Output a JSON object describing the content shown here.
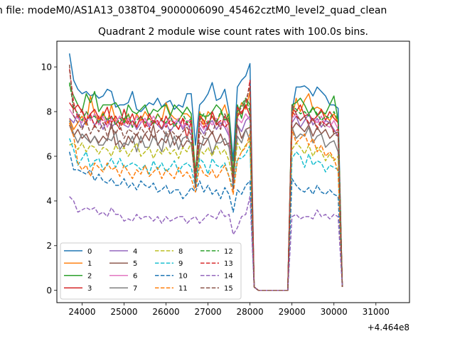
{
  "suptitle": "n file: modeM0/AS1A13_038T04_9000006090_45462cztM0_level2_quad_clean",
  "chart_data": {
    "type": "line",
    "title": "Quadrant 2 module wise count rates with 100.0s bins.",
    "xlabel": "",
    "ylabel": "",
    "x_offset_label": "+4.464e8",
    "xlim": [
      23400,
      31800
    ],
    "ylim": [
      -0.55,
      11.15
    ],
    "xticks": [
      24000,
      25000,
      26000,
      27000,
      28000,
      29000,
      30000,
      31000
    ],
    "yticks": [
      0,
      2,
      4,
      6,
      8,
      10
    ],
    "legend_position": "lower-left",
    "legend_columns": 4,
    "grid": false,
    "x_start": 23700,
    "x_step": 100,
    "gap_start_index": 13,
    "gap_end_index": 20,
    "series": [
      {
        "name": "0",
        "color": "#1f77b4",
        "dash": "solid",
        "seg1": [
          10.6,
          9.4,
          9.0,
          8.8,
          8.9,
          8.7,
          8.8,
          8.6,
          8.7,
          9.0,
          8.9,
          8.2,
          8.3,
          8.3,
          8.4,
          8.9,
          8.1,
          8.0,
          8.2,
          8.4,
          8.3,
          8.6,
          8.2,
          8.4,
          8.5,
          8.1,
          8.3,
          8.2,
          8.8,
          8.8,
          6.5,
          8.3,
          8.5,
          8.8,
          9.3,
          8.5,
          8.6,
          9.0,
          8.0,
          5.8,
          9.1,
          9.4,
          9.6,
          10.15
        ],
        "seg2": [
          8.0,
          9.1,
          9.1,
          9.15,
          9.0,
          8.7,
          9.1,
          8.9,
          8.7,
          8.3,
          8.3,
          8.15
        ]
      },
      {
        "name": "1",
        "color": "#ff7f0e",
        "dash": "solid",
        "seg1": [
          7.7,
          7.2,
          7.5,
          7.8,
          7.4,
          8.7,
          7.9,
          7.6,
          8.0,
          7.5,
          8.3,
          7.6,
          7.5,
          7.4,
          7.9,
          7.3,
          7.9,
          7.6,
          8.0,
          7.7,
          7.5,
          7.9,
          7.6,
          8.4,
          7.9,
          7.7,
          7.6,
          7.9,
          7.9,
          7.7,
          4.6,
          8.0,
          7.4,
          8.0,
          7.8,
          7.5,
          7.9,
          8.3,
          7.6,
          4.5,
          7.7,
          8.4,
          8.1,
          8.9
        ],
        "seg2": [
          7.7,
          8.6,
          8.0,
          8.5,
          8.8,
          8.1,
          8.2,
          8.1,
          7.8,
          7.6,
          7.9,
          7.5
        ]
      },
      {
        "name": "2",
        "color": "#2ca02c",
        "dash": "solid",
        "seg1": [
          9.2,
          8.7,
          8.3,
          8.0,
          8.8,
          8.4,
          8.9,
          8.0,
          8.3,
          8.3,
          8.3,
          8.4,
          8.1,
          7.5,
          8.3,
          8.0,
          7.9,
          8.1,
          8.3,
          7.8,
          8.1,
          8.0,
          8.2,
          8.3,
          7.8,
          8.3,
          8.1,
          7.9,
          8.2,
          7.9,
          5.2,
          7.9,
          7.8,
          7.8,
          8.0,
          8.3,
          8.1,
          7.6,
          7.9,
          5.2,
          8.3,
          7.7,
          8.6,
          8.3
        ],
        "seg2": [
          8.3,
          8.4,
          8.6,
          8.3,
          7.9,
          8.2,
          7.8,
          8.0,
          7.9,
          8.3,
          8.7,
          7.6
        ]
      },
      {
        "name": "3",
        "color": "#d62728",
        "dash": "solid",
        "seg1": [
          8.4,
          8.1,
          8.3,
          8.0,
          7.6,
          7.9,
          8.1,
          7.7,
          7.8,
          8.2,
          7.5,
          7.8,
          7.4,
          8.1,
          7.5,
          7.9,
          7.3,
          7.8,
          7.3,
          7.9,
          7.5,
          7.6,
          7.2,
          7.8,
          7.4,
          7.5,
          7.2,
          7.7,
          6.8,
          7.6,
          4.7,
          7.8,
          7.6,
          7.2,
          8.0,
          7.5,
          7.3,
          7.8,
          7.4,
          4.7,
          8.2,
          7.9,
          8.3,
          7.8
        ],
        "seg2": [
          8.1,
          8.0,
          8.3,
          7.8,
          7.9,
          7.6,
          7.8,
          8.1,
          7.6,
          8.0,
          7.7,
          7.5
        ]
      },
      {
        "name": "4",
        "color": "#9467bd",
        "dash": "solid",
        "seg1": [
          7.7,
          7.5,
          7.9,
          7.3,
          7.6,
          7.8,
          7.4,
          7.6,
          7.2,
          7.7,
          7.3,
          7.5,
          7.8,
          7.4,
          7.3,
          7.6,
          7.2,
          7.5,
          7.7,
          7.3,
          7.6,
          7.4,
          7.2,
          7.5,
          7.1,
          7.4,
          7.6,
          7.2,
          7.5,
          7.1,
          4.9,
          7.3,
          7.0,
          7.4,
          7.6,
          7.2,
          7.5,
          7.3,
          6.9,
          4.9,
          7.4,
          7.1,
          7.6,
          7.8
        ],
        "seg2": [
          7.5,
          7.8,
          7.3,
          7.6,
          7.9,
          7.4,
          7.7,
          7.3,
          7.6,
          7.5,
          7.2,
          6.9
        ]
      },
      {
        "name": "5",
        "color": "#8c564b",
        "dash": "solid",
        "seg1": [
          7.4,
          6.9,
          7.2,
          6.8,
          7.0,
          6.6,
          6.9,
          6.6,
          6.9,
          6.7,
          7.5,
          6.5,
          6.7,
          6.4,
          6.9,
          6.6,
          7.0,
          6.6,
          7.0,
          6.7,
          7.4,
          6.5,
          6.8,
          6.6,
          7.1,
          6.5,
          6.9,
          6.4,
          6.7,
          6.6,
          5.0,
          6.6,
          6.5,
          6.8,
          7.1,
          6.6,
          7.0,
          6.5,
          6.6,
          5.0,
          7.4,
          6.8,
          7.2,
          7.3
        ],
        "seg2": [
          7.2,
          7.5,
          7.3,
          7.1,
          7.4,
          6.9,
          7.3,
          7.0,
          7.2,
          6.8,
          7.0,
          7.1
        ]
      },
      {
        "name": "6",
        "color": "#e377c2",
        "dash": "solid",
        "seg1": [
          8.1,
          7.8,
          7.7,
          7.5,
          8.0,
          7.6,
          7.9,
          7.4,
          7.8,
          7.3,
          7.7,
          7.5,
          7.8,
          7.4,
          7.7,
          7.3,
          7.8,
          7.5,
          7.7,
          7.4,
          7.8,
          7.5,
          7.6,
          7.3,
          7.8,
          7.5,
          7.7,
          7.3,
          7.6,
          7.6,
          4.7,
          7.5,
          7.2,
          7.6,
          7.4,
          7.7,
          7.3,
          7.6,
          7.0,
          4.7,
          7.7,
          7.5,
          7.9,
          7.6
        ],
        "seg2": [
          7.7,
          7.9,
          7.6,
          7.8,
          7.4,
          7.7,
          7.5,
          7.8,
          7.4,
          7.3,
          7.6,
          7.2
        ]
      },
      {
        "name": "7",
        "color": "#7f7f7f",
        "dash": "solid",
        "seg1": [
          7.6,
          7.0,
          6.6,
          7.0,
          6.8,
          6.6,
          6.9,
          6.5,
          6.5,
          6.8,
          6.7,
          7.1,
          6.3,
          6.6,
          6.5,
          6.9,
          6.2,
          6.9,
          6.4,
          6.4,
          6.9,
          6.6,
          6.2,
          7.1,
          6.4,
          6.9,
          6.3,
          6.8,
          6.9,
          6.5,
          5.0,
          6.2,
          6.8,
          6.8,
          6.1,
          6.6,
          6.6,
          6.8,
          6.4,
          5.0,
          6.9,
          6.6,
          7.2,
          6.7
        ],
        "seg2": [
          7.3,
          6.8,
          7.0,
          6.9,
          7.3,
          6.6,
          6.9,
          7.0,
          6.4,
          6.6,
          6.7,
          6.2
        ]
      },
      {
        "name": "8",
        "color": "#bcbd22",
        "dash": "dashed",
        "seg1": [
          6.5,
          6.6,
          6.3,
          6.6,
          6.2,
          6.5,
          6.4,
          6.1,
          6.4,
          6.3,
          6.0,
          6.5,
          6.2,
          6.4,
          6.0,
          6.3,
          6.6,
          6.0,
          6.2,
          6.4,
          5.9,
          6.3,
          6.1,
          6.4,
          6.1,
          6.3,
          5.9,
          6.4,
          6.2,
          6.6,
          4.8,
          6.3,
          6.1,
          6.4,
          6.0,
          6.5,
          6.1,
          6.3,
          5.8,
          4.9,
          6.6,
          6.2,
          6.5,
          6.7
        ],
        "seg2": [
          6.3,
          6.6,
          6.4,
          6.1,
          6.5,
          6.0,
          6.4,
          6.2,
          5.8,
          6.1,
          5.8,
          6.0
        ]
      },
      {
        "name": "9",
        "color": "#17becf",
        "dash": "dashed",
        "seg1": [
          6.8,
          6.3,
          5.6,
          5.9,
          6.2,
          5.5,
          5.8,
          5.9,
          5.4,
          5.6,
          5.9,
          5.5,
          5.9,
          5.5,
          5.6,
          5.7,
          5.6,
          5.4,
          5.6,
          5.2,
          5.8,
          5.4,
          5.7,
          5.3,
          5.5,
          5.8,
          5.3,
          5.6,
          5.7,
          5.5,
          4.6,
          5.9,
          5.7,
          5.2,
          5.9,
          5.6,
          5.5,
          5.7,
          5.1,
          4.6,
          5.9,
          5.9,
          6.1,
          6.5
        ],
        "seg2": [
          5.9,
          6.2,
          6.0,
          5.5,
          6.1,
          5.6,
          5.8,
          5.7,
          5.3,
          5.6,
          5.5,
          5.4
        ]
      },
      {
        "name": "10",
        "color": "#1f77b4",
        "dash": "dashed",
        "seg1": [
          6.2,
          5.4,
          5.4,
          5.3,
          5.2,
          5.4,
          4.9,
          5.2,
          4.9,
          4.8,
          5.0,
          4.7,
          4.7,
          5.0,
          4.6,
          4.8,
          4.5,
          4.9,
          4.7,
          4.6,
          4.8,
          4.4,
          4.5,
          4.7,
          4.3,
          4.5,
          4.5,
          4.1,
          4.3,
          4.6,
          4.4,
          4.9,
          4.4,
          4.7,
          4.3,
          4.5,
          4.1,
          4.6,
          4.3,
          3.5,
          4.5,
          4.3,
          4.7,
          4.9
        ],
        "seg2": [
          5.0,
          4.7,
          4.5,
          4.4,
          4.6,
          4.3,
          4.7,
          4.4,
          4.3,
          4.5,
          4.3,
          4.2
        ]
      },
      {
        "name": "11",
        "color": "#ff7f0e",
        "dash": "dashed",
        "seg1": [
          7.5,
          6.9,
          5.7,
          5.4,
          5.6,
          5.1,
          5.7,
          5.5,
          5.3,
          5.7,
          5.4,
          5.5,
          5.1,
          5.6,
          5.3,
          5.0,
          5.4,
          5.2,
          5.6,
          5.1,
          5.3,
          5.5,
          5.0,
          5.4,
          5.2,
          5.0,
          5.5,
          5.1,
          5.3,
          5.0,
          4.4,
          5.6,
          5.2,
          5.1,
          5.4,
          5.0,
          5.3,
          5.6,
          5.1,
          4.3,
          5.8,
          6.2,
          6.4,
          7.0
        ],
        "seg2": [
          7.2,
          6.6,
          6.8,
          7.0,
          6.5,
          6.8,
          6.2,
          6.5,
          6.0,
          6.2,
          5.9,
          5.3
        ]
      },
      {
        "name": "12",
        "color": "#2ca02c",
        "dash": "dashed",
        "seg1": [
          9.3,
          8.2,
          7.9,
          7.6,
          8.0,
          7.7,
          7.8,
          7.5,
          7.9,
          7.6,
          7.8,
          7.4,
          7.7,
          7.5,
          7.9,
          7.3,
          7.6,
          7.8,
          7.5,
          7.7,
          7.4,
          7.9,
          7.6,
          7.5,
          7.8,
          7.3,
          7.6,
          7.9,
          7.5,
          7.7,
          4.8,
          7.6,
          7.9,
          7.4,
          7.8,
          7.5,
          8.0,
          7.6,
          7.7,
          5.0,
          8.0,
          8.3,
          8.6,
          8.0
        ],
        "seg2": [
          8.3,
          8.1,
          7.9,
          8.0,
          7.8,
          8.2,
          7.9,
          7.6,
          7.8,
          7.7,
          8.0,
          7.6
        ]
      },
      {
        "name": "13",
        "color": "#d62728",
        "dash": "dashed",
        "seg1": [
          9.9,
          8.4,
          7.7,
          8.1,
          7.5,
          7.9,
          7.3,
          7.8,
          7.6,
          7.4,
          7.8,
          7.5,
          7.2,
          7.7,
          7.4,
          7.6,
          7.3,
          7.8,
          7.5,
          7.2,
          7.6,
          7.4,
          7.7,
          7.3,
          7.6,
          7.5,
          7.2,
          7.7,
          7.4,
          7.6,
          4.9,
          7.7,
          7.3,
          7.5,
          7.8,
          7.4,
          7.6,
          7.3,
          7.5,
          4.9,
          7.8,
          8.0,
          8.2,
          9.4
        ],
        "seg2": [
          8.0,
          7.8,
          7.6,
          7.8,
          7.5,
          7.7,
          7.3,
          7.6,
          7.4,
          7.5,
          7.1,
          7.2
        ]
      },
      {
        "name": "14",
        "color": "#9467bd",
        "dash": "dashed",
        "seg1": [
          4.2,
          4.0,
          3.5,
          3.6,
          3.7,
          3.6,
          3.7,
          3.4,
          3.5,
          3.3,
          3.7,
          3.4,
          3.4,
          3.1,
          3.2,
          3.1,
          3.4,
          3.2,
          3.3,
          3.3,
          3.1,
          3.3,
          3.0,
          3.3,
          3.1,
          3.2,
          3.3,
          3.3,
          3.0,
          3.2,
          3.3,
          3.0,
          3.2,
          3.4,
          3.3,
          3.2,
          3.6,
          3.3,
          3.4,
          2.5,
          2.8,
          3.3,
          3.4,
          4.2
        ],
        "seg2": [
          3.3,
          3.4,
          3.2,
          3.3,
          3.3,
          3.2,
          3.6,
          3.3,
          3.4,
          3.2,
          3.4,
          3.3
        ]
      },
      {
        "name": "15",
        "color": "#8c564b",
        "dash": "dashed",
        "seg1": [
          10.1,
          7.8,
          7.5,
          7.2,
          7.6,
          7.0,
          7.4,
          7.1,
          7.5,
          6.9,
          7.3,
          7.0,
          7.4,
          6.8,
          7.2,
          7.1,
          6.9,
          7.3,
          7.0,
          7.2,
          6.8,
          7.1,
          7.3,
          6.9,
          7.2,
          7.0,
          6.8,
          7.1,
          7.3,
          6.9,
          4.6,
          7.1,
          6.8,
          7.3,
          7.0,
          7.6,
          7.2,
          7.9,
          7.5,
          4.5,
          7.9,
          8.2,
          8.5,
          9.1
        ],
        "seg2": [
          8.3,
          7.9,
          7.6,
          7.8,
          7.4,
          7.7,
          7.2,
          7.5,
          7.3,
          7.6,
          7.0,
          6.9
        ]
      }
    ]
  }
}
